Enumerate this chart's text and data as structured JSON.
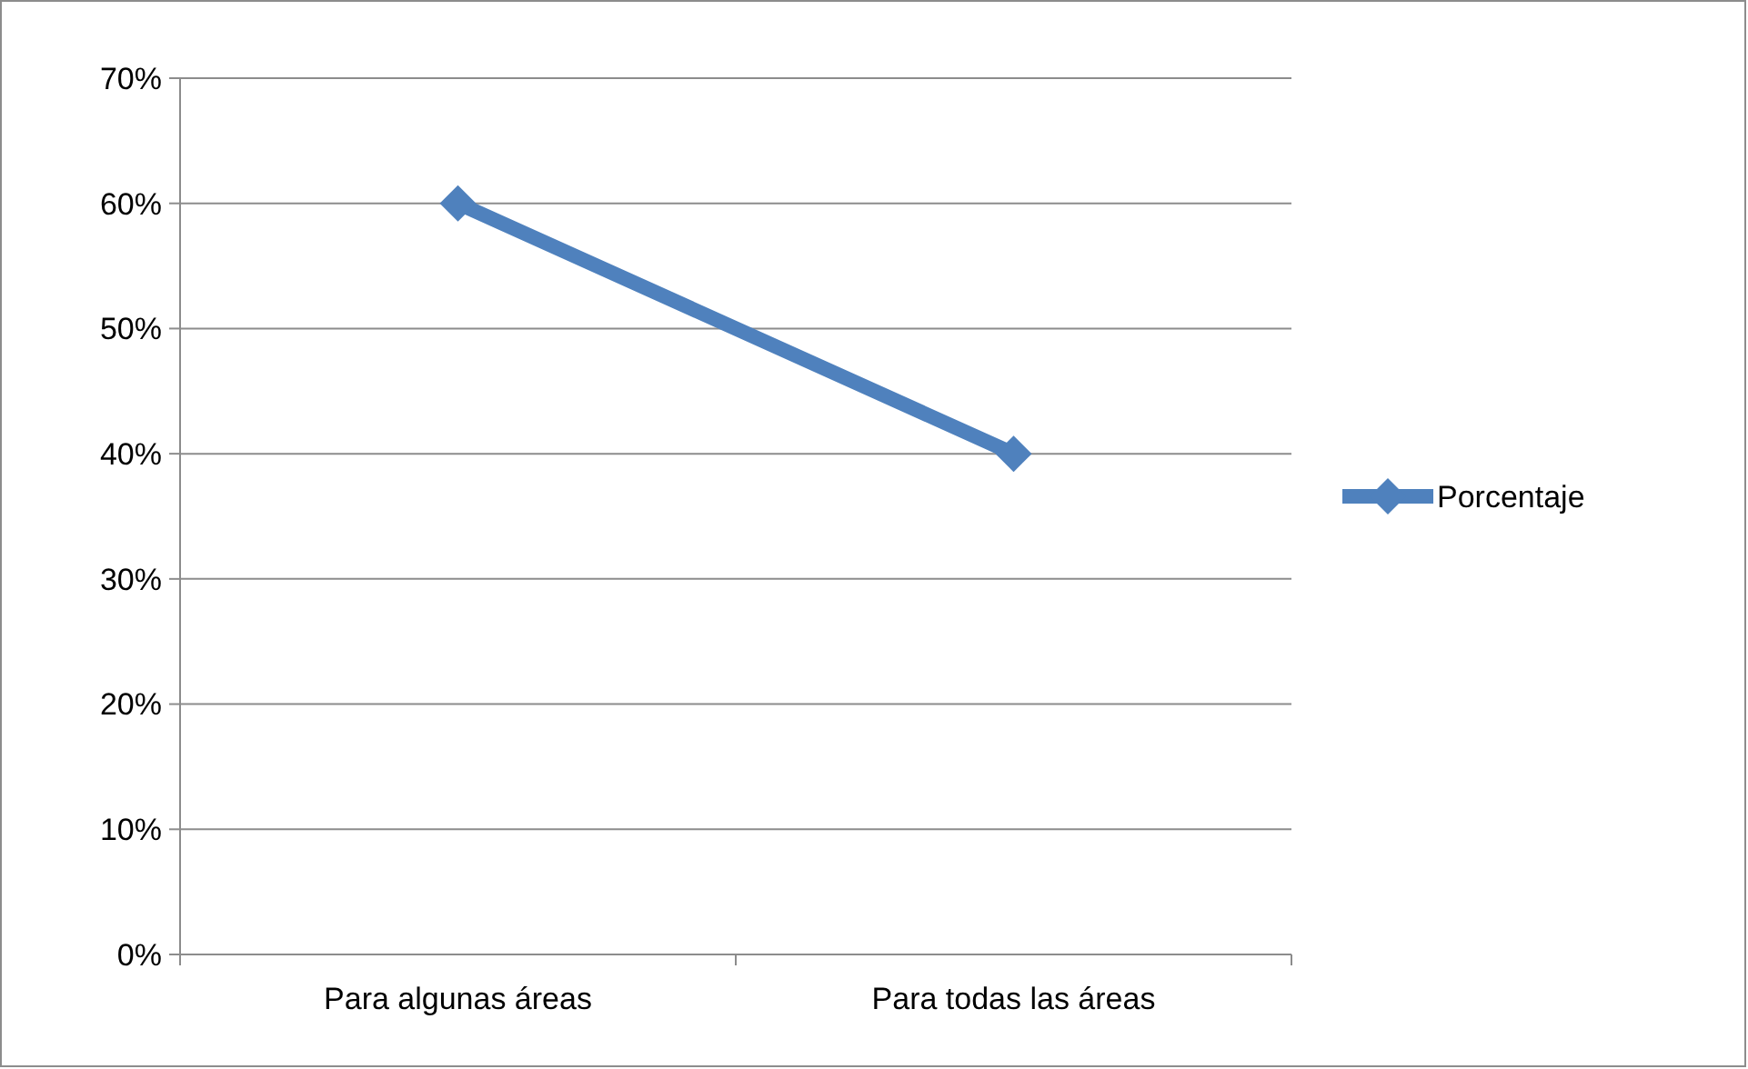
{
  "chart_data": {
    "type": "line",
    "categories": [
      "Para algunas áreas",
      "Para todas las áreas"
    ],
    "series": [
      {
        "name": "Porcentaje",
        "color": "#4f81bd",
        "values": [
          60,
          40
        ]
      }
    ],
    "ylim": [
      0,
      70
    ],
    "yticks": [
      {
        "value": 0,
        "label": "0%"
      },
      {
        "value": 10,
        "label": "10%"
      },
      {
        "value": 20,
        "label": "20%"
      },
      {
        "value": 30,
        "label": "30%"
      },
      {
        "value": 40,
        "label": "40%"
      },
      {
        "value": 50,
        "label": "50%"
      },
      {
        "value": 60,
        "label": "60%"
      },
      {
        "value": 70,
        "label": "70%"
      }
    ],
    "grid": "y",
    "legend": "right",
    "marker": "diamond",
    "line_style": "solid"
  }
}
